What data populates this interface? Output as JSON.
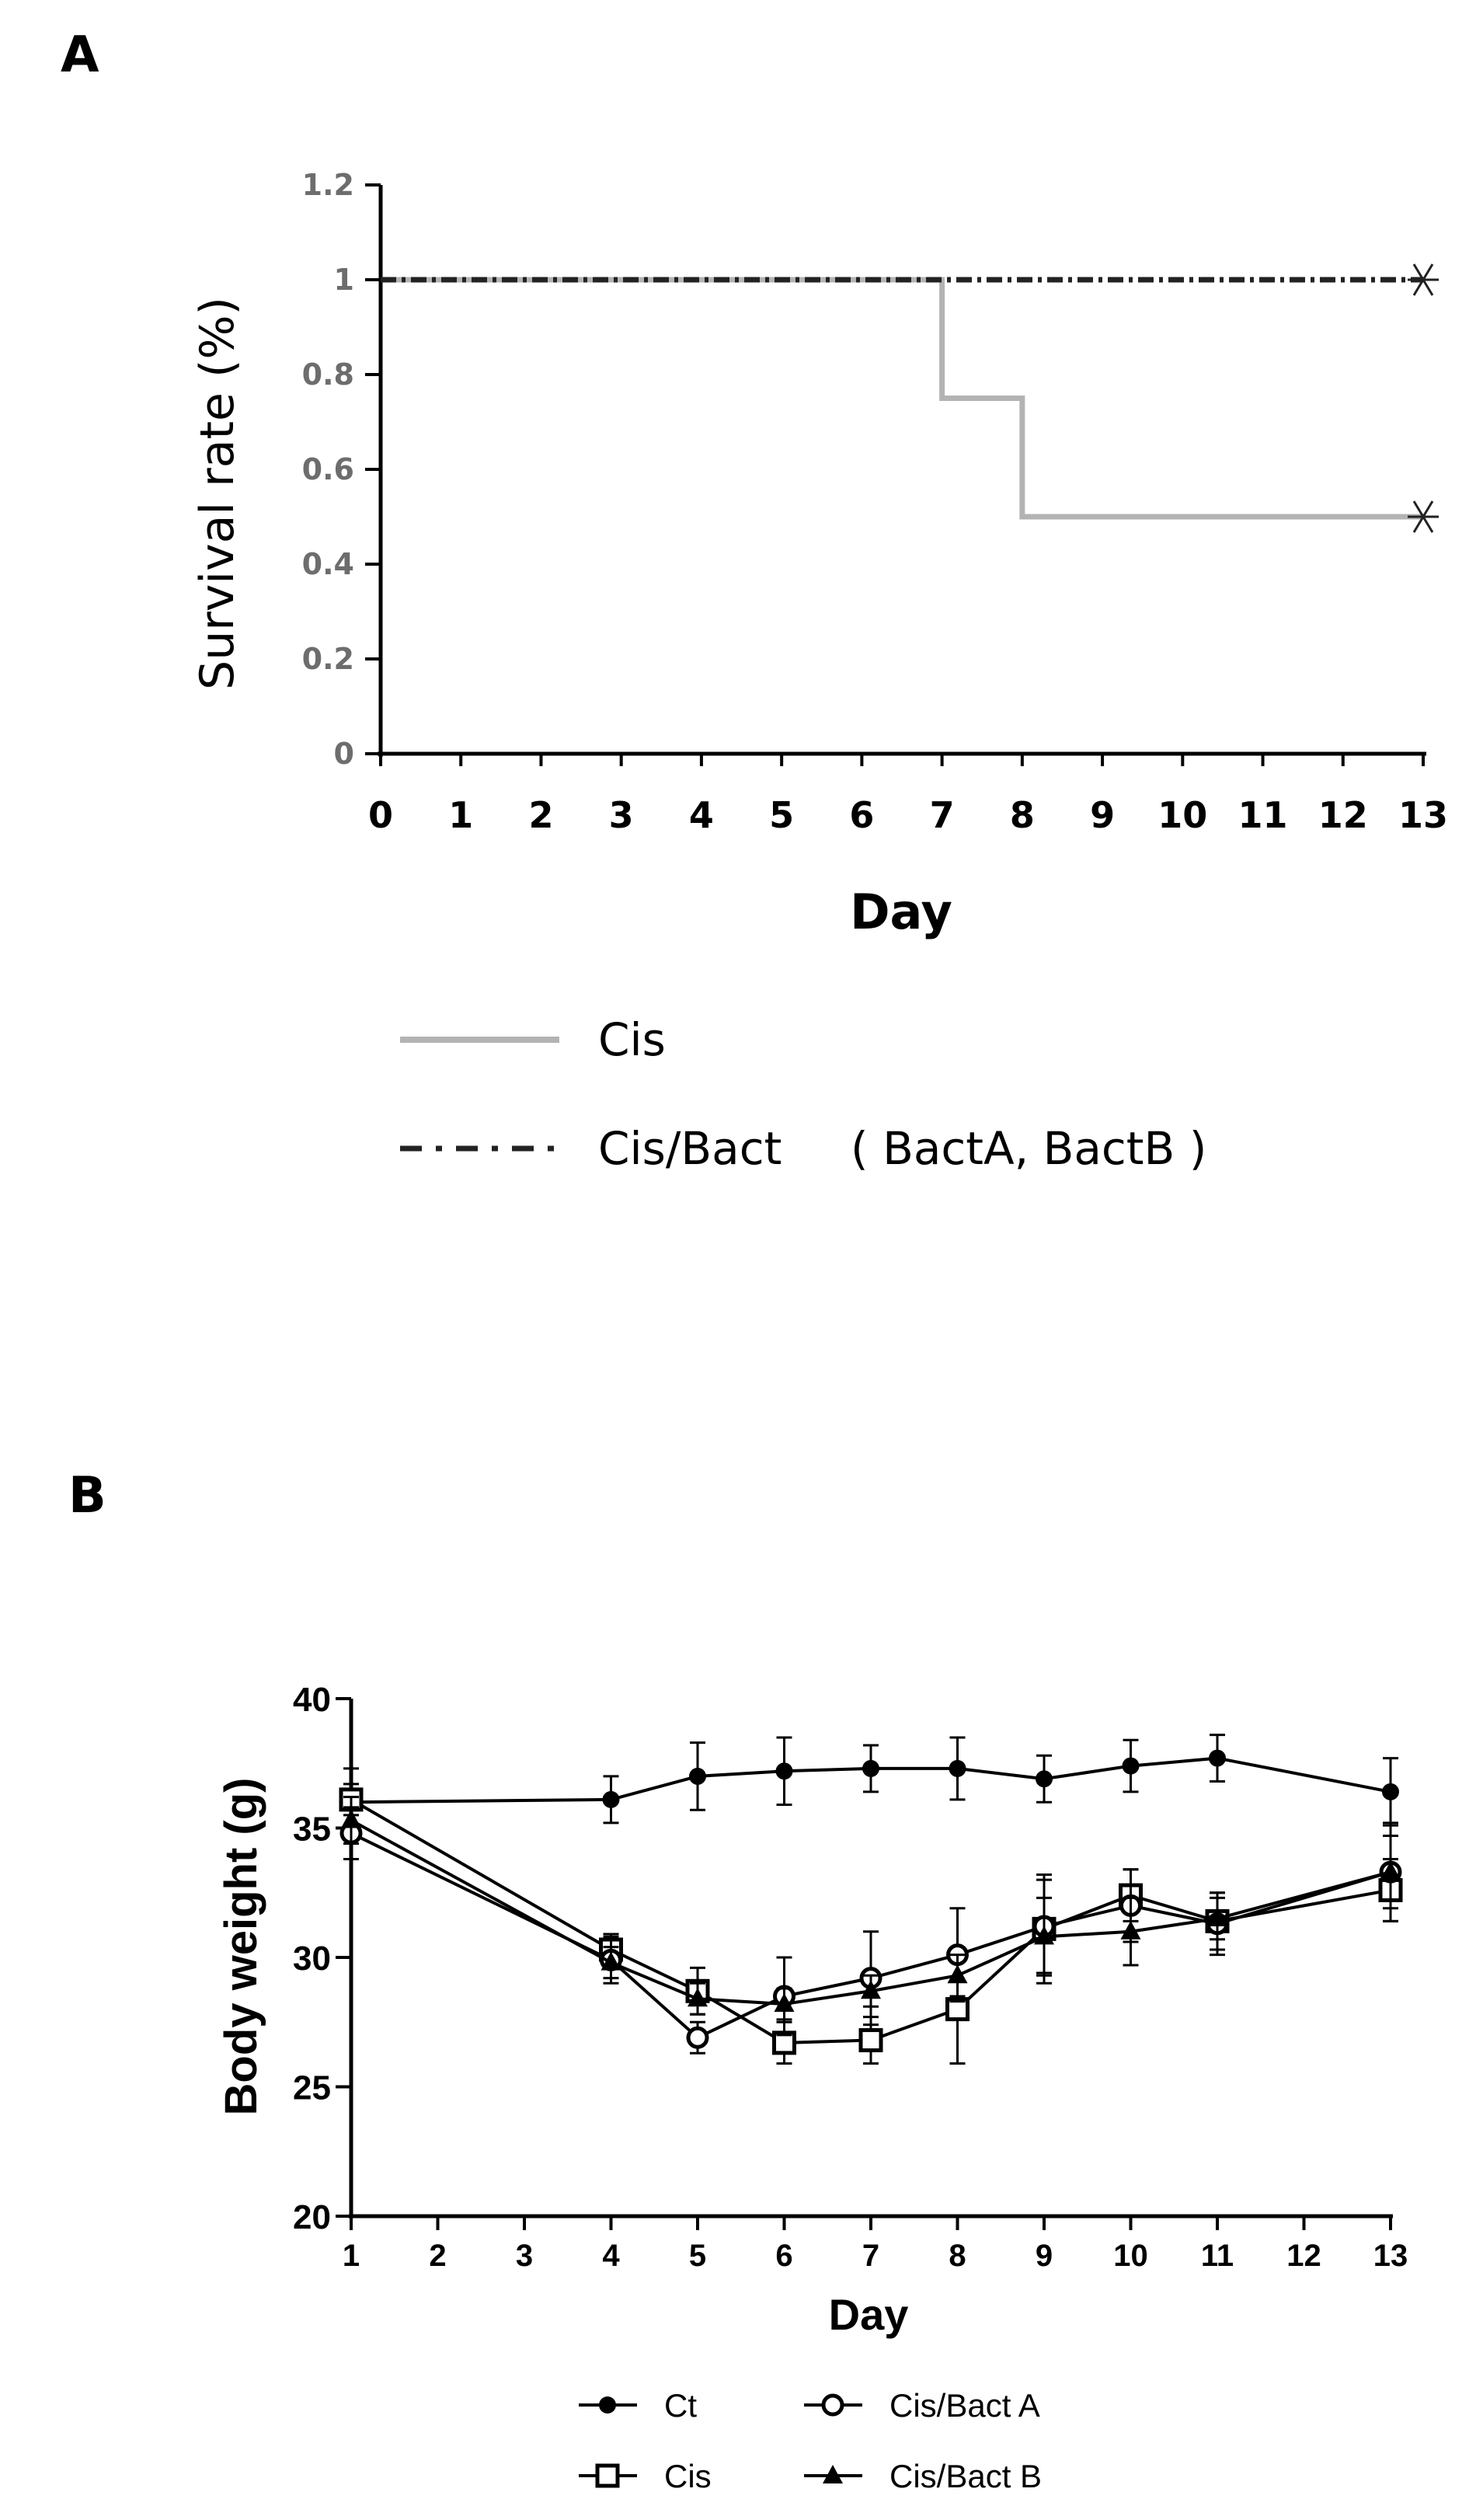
{
  "panels": [
    "A",
    "B"
  ],
  "chart_data": [
    {
      "panel": "A",
      "type": "line",
      "title": "",
      "xlabel": "Day",
      "ylabel": "Survival rate (%)",
      "xlim": [
        0,
        13
      ],
      "ylim": [
        0,
        1.2
      ],
      "x_ticks": [
        0,
        1,
        2,
        3,
        4,
        5,
        6,
        7,
        8,
        9,
        10,
        11,
        12,
        13
      ],
      "y_ticks": [
        "0",
        "0.2",
        "0.4",
        "0.6",
        "0.8",
        "1",
        "1.2"
      ],
      "step": true,
      "series": [
        {
          "name": "Cis",
          "style": "solid",
          "color": "#b3b3b3",
          "x": [
            0,
            7,
            7,
            8,
            8,
            13
          ],
          "y": [
            1,
            1,
            0.75,
            0.75,
            0.5,
            0.5
          ],
          "censor_x": 13
        },
        {
          "name": "Cis/Bact",
          "name_suffix": "( BactA, BactB )",
          "style": "dash-dot",
          "color": "#222222",
          "x": [
            0,
            13
          ],
          "y": [
            1,
            1
          ],
          "censor_x": 13
        }
      ],
      "legend": [
        {
          "label": "Cis",
          "style": "solid",
          "color": "#b3b3b3"
        },
        {
          "label": "Cis/Bact",
          "suffix": "( BactA, BactB )",
          "style": "dash-dot",
          "color": "#222222"
        }
      ],
      "legend_position": "bottom"
    },
    {
      "panel": "B",
      "type": "line",
      "title": "",
      "xlabel": "Day",
      "ylabel": "Body weight (g)",
      "xlim": [
        1,
        13
      ],
      "ylim": [
        20,
        40
      ],
      "x_ticks": [
        1,
        2,
        3,
        4,
        5,
        6,
        7,
        8,
        9,
        10,
        11,
        12,
        13
      ],
      "y_ticks": [
        20,
        25,
        30,
        35,
        40
      ],
      "x": [
        1,
        4,
        5,
        6,
        7,
        8,
        9,
        10,
        11,
        13
      ],
      "series": [
        {
          "name": "Ct",
          "marker": "filled-circle",
          "values": [
            36.0,
            36.1,
            37.0,
            37.2,
            37.3,
            37.3,
            36.9,
            37.4,
            37.7,
            36.4
          ],
          "errors": [
            1.3,
            0.9,
            1.3,
            1.3,
            0.9,
            1.2,
            0.9,
            1.0,
            0.9,
            1.3
          ]
        },
        {
          "name": "Cis",
          "marker": "open-square",
          "values": [
            36.1,
            30.3,
            28.7,
            26.7,
            26.8,
            28.0,
            31.1,
            32.4,
            31.4,
            32.6
          ],
          "errors": [
            0.6,
            0.6,
            0.9,
            0.8,
            0.9,
            2.1,
            2.1,
            1.0,
            1.1,
            1.2
          ]
        },
        {
          "name": "Cis/Bact A",
          "marker": "open-circle",
          "values": [
            34.8,
            29.9,
            26.9,
            28.5,
            29.2,
            30.1,
            31.2,
            32.0,
            31.3,
            33.3
          ],
          "errors": [
            1.0,
            0.9,
            0.6,
            1.5,
            1.8,
            1.8,
            1.8,
            1.4,
            1.2,
            1.9
          ]
        },
        {
          "name": "Cis/Bact B",
          "marker": "filled-triangle",
          "values": [
            35.3,
            29.8,
            28.4,
            28.2,
            28.7,
            29.3,
            30.8,
            31.0,
            31.5,
            33.3
          ],
          "errors": [
            0.9,
            0.6,
            0.6,
            0.6,
            0.6,
            0.8,
            1.5,
            1.3,
            0.8,
            1.4
          ]
        }
      ],
      "legend": [
        {
          "label": "Ct",
          "marker": "filled-circle"
        },
        {
          "label": "Cis/Bact A",
          "marker": "open-circle"
        },
        {
          "label": "Cis",
          "marker": "open-square"
        },
        {
          "label": "Cis/Bact B",
          "marker": "filled-triangle"
        }
      ],
      "legend_position": "bottom"
    }
  ]
}
